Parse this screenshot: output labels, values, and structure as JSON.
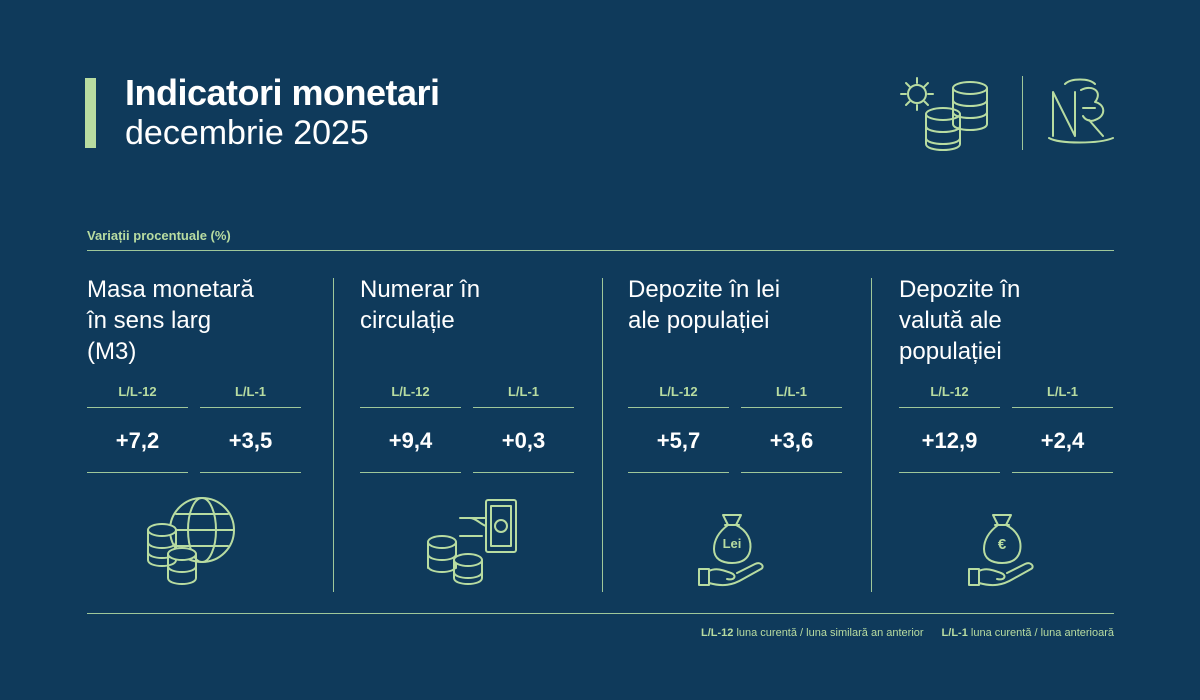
{
  "header": {
    "title": "Indicatori monetari",
    "subtitle": "decembrie 2025"
  },
  "section_label": "Variații procentuale (%)",
  "cards": [
    {
      "title_lines": [
        "Masa monetară",
        "în sens larg",
        "(M3)"
      ],
      "columns": [
        {
          "label": "L/L-12",
          "value": "+7,2"
        },
        {
          "label": "L/L-1",
          "value": "+3,5"
        }
      ]
    },
    {
      "title_lines": [
        "Numerar în",
        "circulație"
      ],
      "columns": [
        {
          "label": "L/L-12",
          "value": "+9,4"
        },
        {
          "label": "L/L-1",
          "value": "+0,3"
        }
      ]
    },
    {
      "title_lines": [
        "Depozite în lei",
        "ale populației"
      ],
      "columns": [
        {
          "label": "L/L-12",
          "value": "+5,7"
        },
        {
          "label": "L/L-1",
          "value": "+3,6"
        }
      ]
    },
    {
      "title_lines": [
        "Depozite în",
        "valută ale",
        "populației"
      ],
      "columns": [
        {
          "label": "L/L-12",
          "value": "+12,9"
        },
        {
          "label": "L/L-1",
          "value": "+2,4"
        }
      ]
    }
  ],
  "icon_texts": {
    "lei": "Lei",
    "euro": "€"
  },
  "legend": [
    {
      "key": "L/L-12",
      "text": "luna curentă / luna similară an anterior"
    },
    {
      "key": "L/L-1",
      "text": "luna curentă / luna anterioară"
    }
  ]
}
